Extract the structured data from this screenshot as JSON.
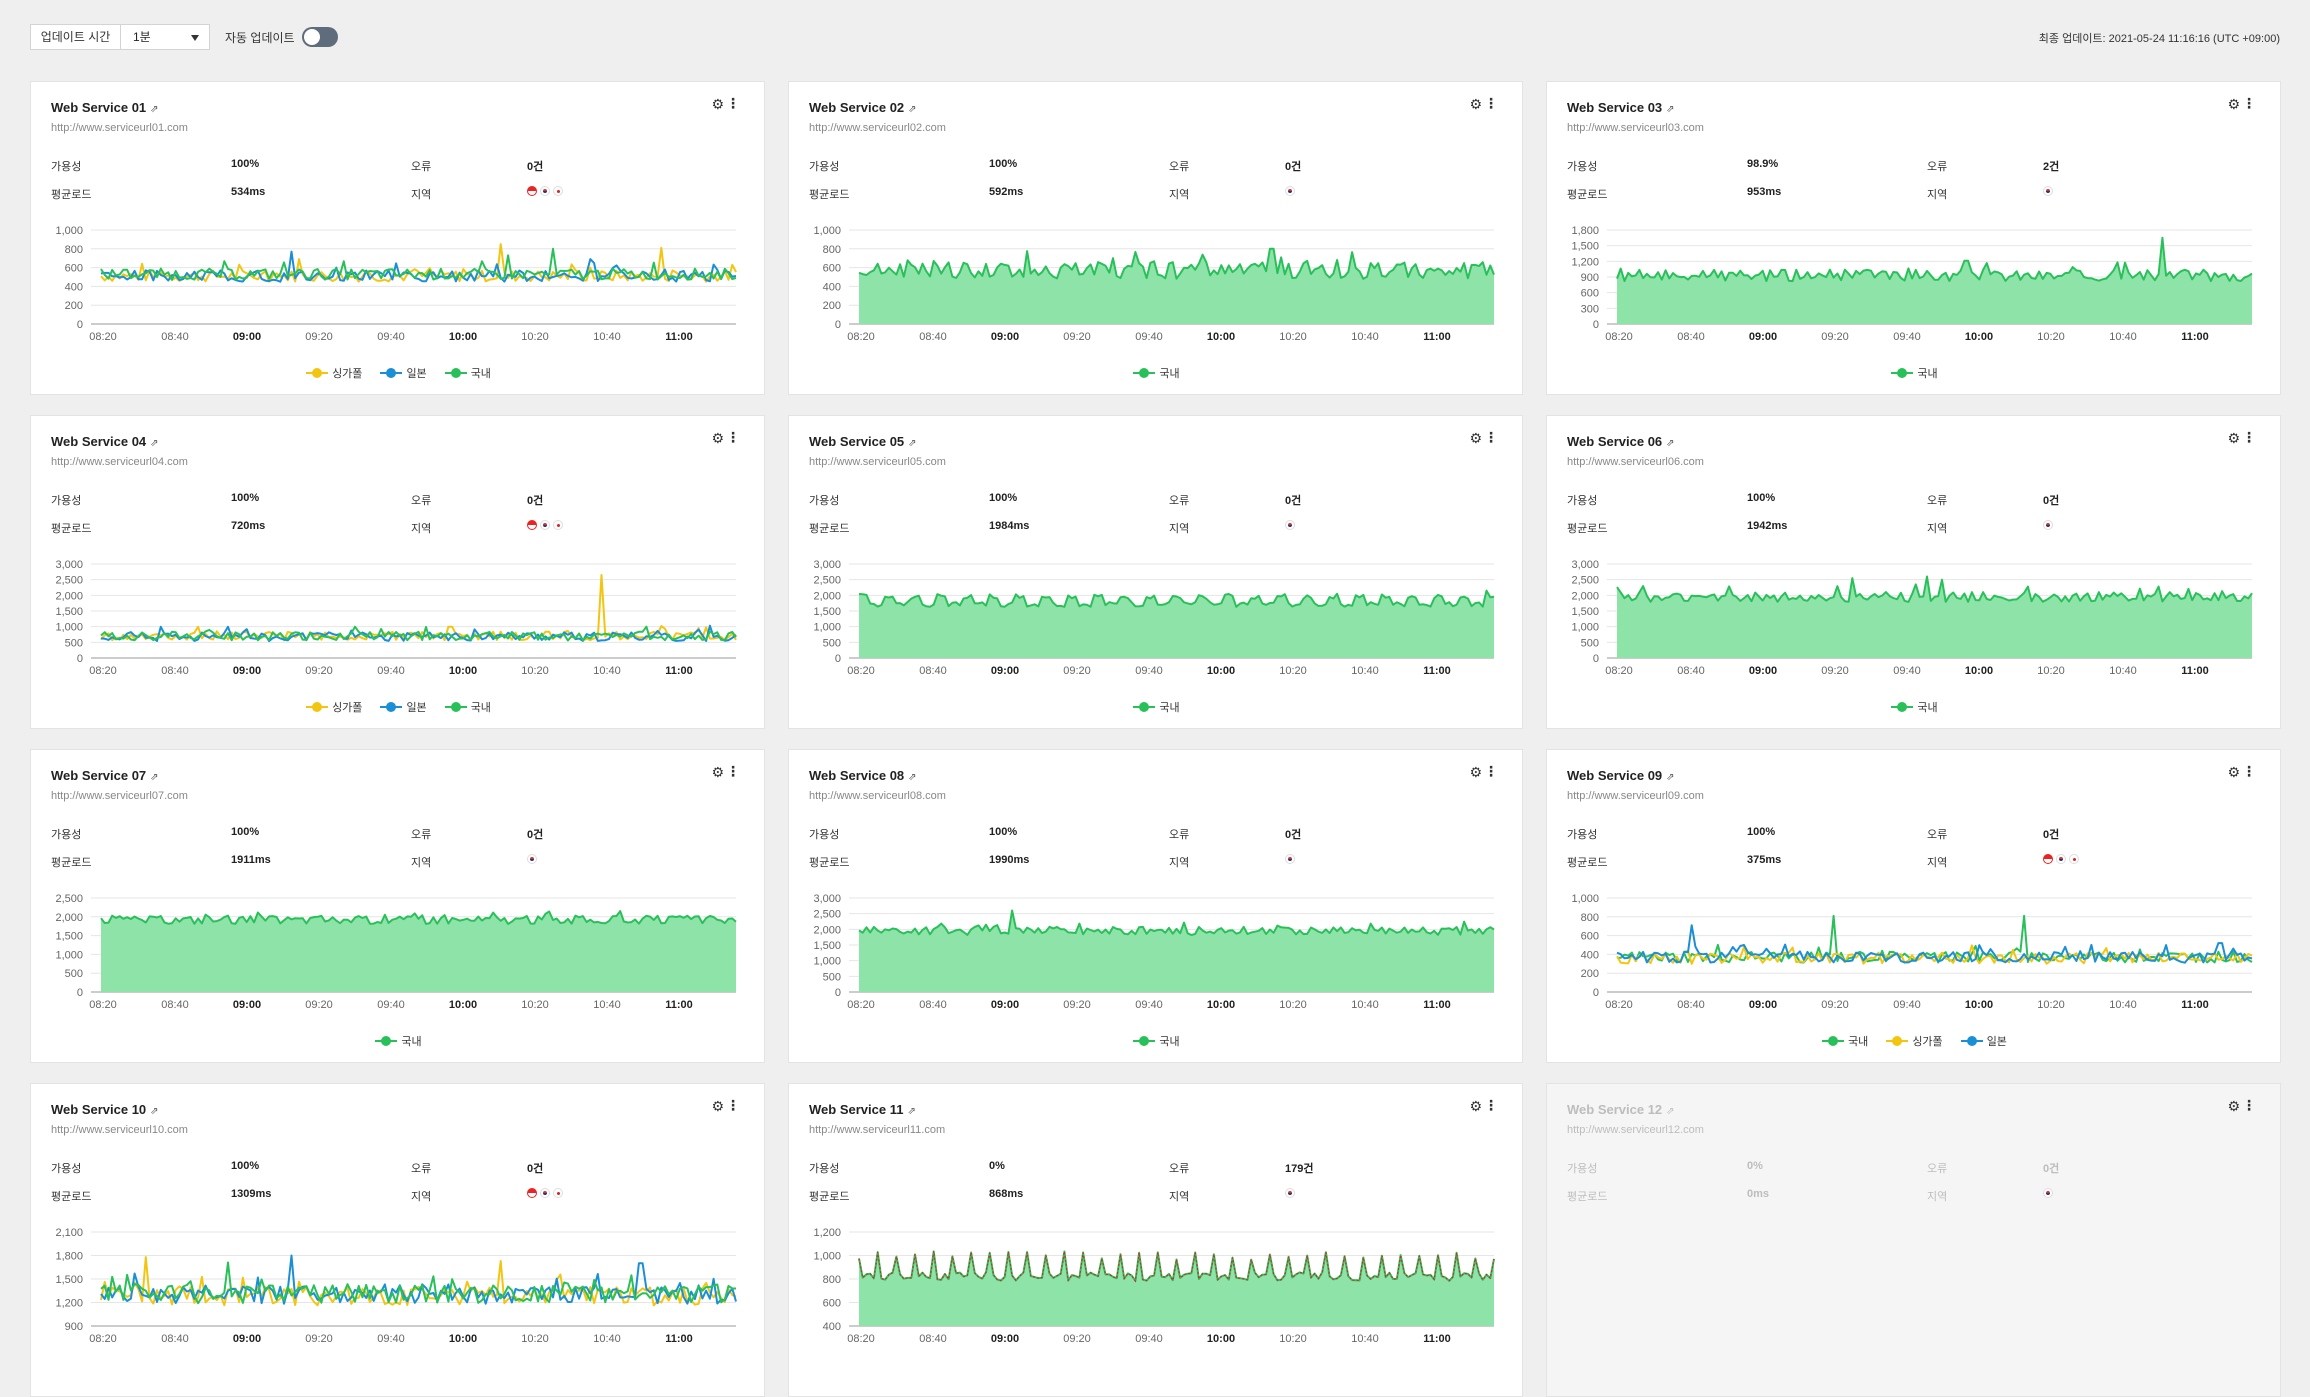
{
  "toolbar": {
    "update_time_label": "업데이트 시간",
    "interval_value": "1분",
    "auto_update_label": "자동 업데이트",
    "auto_update_on": false,
    "last_update": "최종 업데이트: 2021-05-24 11:16:16 (UTC +09:00)"
  },
  "labels": {
    "availability": "가용성",
    "error": "오류",
    "avg_load": "평균로드",
    "region": "지역"
  },
  "legend_names": {
    "sg": "싱가폴",
    "jp": "일본",
    "kr": "국내"
  },
  "colors": {
    "sg": "#f2c511",
    "jp": "#1a8fd6",
    "kr": "#29c05a",
    "kr_fill": "#8de3a8",
    "error_line": "#d8262b"
  },
  "x_ticks": [
    "08:20",
    "08:40",
    "09:00",
    "09:20",
    "09:40",
    "10:00",
    "10:20",
    "10:40",
    "11:00"
  ],
  "x_ticks_bold": [
    "09:00",
    "10:00",
    "11:00"
  ],
  "services": [
    {
      "title": "Web Service 01",
      "url": "http://www.serviceurl01.com",
      "availability": "100%",
      "errors": "0건",
      "avg_load": "534ms",
      "regions": [
        "sg",
        "kr",
        "jp"
      ],
      "chart": {
        "type": "line",
        "ymax": 1000,
        "yticks": [
          "0",
          "200",
          "400",
          "600",
          "800",
          "1,000"
        ],
        "legend": [
          "sg",
          "jp",
          "kr"
        ],
        "series": [
          {
            "key": "sg",
            "base": 510,
            "amp": 60,
            "spikes": [
              [
                0.63,
                340
              ],
              [
                0.88,
                300
              ],
              [
                0.31,
                180
              ]
            ]
          },
          {
            "key": "jp",
            "base": 510,
            "amp": 60,
            "spikes": [
              [
                0.3,
                260
              ],
              [
                0.77,
                180
              ]
            ]
          },
          {
            "key": "kr",
            "base": 530,
            "amp": 60,
            "spikes": [
              [
                0.71,
                270
              ],
              [
                0.64,
                200
              ]
            ]
          }
        ]
      }
    },
    {
      "title": "Web Service 02",
      "url": "http://www.serviceurl02.com",
      "availability": "100%",
      "errors": "0건",
      "avg_load": "592ms",
      "regions": [
        "kr"
      ],
      "chart": {
        "type": "area",
        "ymax": 1000,
        "yticks": [
          "0",
          "200",
          "400",
          "600",
          "800",
          "1,000"
        ],
        "legend": [
          "kr"
        ],
        "series": [
          {
            "key": "kr",
            "base": 570,
            "amp": 90,
            "spikes": [
              [
                0.65,
                230
              ],
              [
                0.4,
                130
              ]
            ]
          }
        ]
      }
    },
    {
      "title": "Web Service 03",
      "url": "http://www.serviceurl03.com",
      "availability": "98.9%",
      "errors": "2건",
      "avg_load": "953ms",
      "regions": [
        "kr"
      ],
      "chart": {
        "type": "area",
        "ymax": 1800,
        "yticks": [
          "0",
          "300",
          "600",
          "900",
          "1,200",
          "1,500",
          "1,800"
        ],
        "legend": [
          "kr"
        ],
        "series": [
          {
            "key": "kr",
            "base": 930,
            "amp": 110,
            "spikes": [
              [
                0.86,
                720
              ],
              [
                0.55,
                280
              ]
            ]
          }
        ]
      }
    },
    {
      "title": "Web Service 04",
      "url": "http://www.serviceurl04.com",
      "availability": "100%",
      "errors": "0건",
      "avg_load": "720ms",
      "regions": [
        "sg",
        "kr",
        "jp"
      ],
      "chart": {
        "type": "line",
        "ymax": 3000,
        "yticks": [
          "0",
          "500",
          "1,000",
          "1,500",
          "2,000",
          "2,500",
          "3,000"
        ],
        "legend": [
          "sg",
          "jp",
          "kr"
        ],
        "series": [
          {
            "key": "sg",
            "base": 700,
            "amp": 140,
            "spikes": [
              [
                0.79,
                1950
              ],
              [
                0.55,
                300
              ]
            ]
          },
          {
            "key": "jp",
            "base": 680,
            "amp": 140,
            "spikes": [
              [
                0.96,
                350
              ]
            ]
          },
          {
            "key": "kr",
            "base": 700,
            "amp": 140,
            "spikes": [
              [
                0.4,
                300
              ]
            ]
          }
        ]
      }
    },
    {
      "title": "Web Service 05",
      "url": "http://www.serviceurl05.com",
      "availability": "100%",
      "errors": "0건",
      "avg_load": "1984ms",
      "regions": [
        "kr"
      ],
      "chart": {
        "type": "area-periodic",
        "ymax": 3000,
        "yticks": [
          "0",
          "500",
          "1,000",
          "1,500",
          "2,000",
          "2,500",
          "3,000"
        ],
        "legend": [
          "kr"
        ],
        "series": [
          {
            "key": "kr",
            "base": 1850,
            "amp": 400,
            "spikes": [
              [
                0.99,
                300
              ]
            ]
          }
        ]
      }
    },
    {
      "title": "Web Service 06",
      "url": "http://www.serviceurl06.com",
      "availability": "100%",
      "errors": "0건",
      "avg_load": "1942ms",
      "regions": [
        "kr"
      ],
      "chart": {
        "type": "area",
        "ymax": 3000,
        "yticks": [
          "0",
          "500",
          "1,000",
          "1,500",
          "2,000",
          "2,500",
          "3,000"
        ],
        "legend": [
          "kr"
        ],
        "series": [
          {
            "key": "kr",
            "base": 1950,
            "amp": 160,
            "spikes": [
              [
                0.37,
                600
              ],
              [
                0.49,
                650
              ],
              [
                0.51,
                550
              ],
              [
                0.47,
                400
              ]
            ]
          }
        ]
      }
    },
    {
      "title": "Web Service 07",
      "url": "http://www.serviceurl07.com",
      "availability": "100%",
      "errors": "0건",
      "avg_load": "1911ms",
      "regions": [
        "kr"
      ],
      "chart": {
        "type": "area",
        "ymax": 2500,
        "yticks": [
          "0",
          "500",
          "1,000",
          "1,500",
          "2,000",
          "2,500"
        ],
        "legend": [
          "kr"
        ],
        "series": [
          {
            "key": "kr",
            "base": 1920,
            "amp": 110,
            "spikes": []
          }
        ]
      }
    },
    {
      "title": "Web Service 08",
      "url": "http://www.serviceurl08.com",
      "availability": "100%",
      "errors": "0건",
      "avg_load": "1990ms",
      "regions": [
        "kr"
      ],
      "chart": {
        "type": "area",
        "ymax": 3000,
        "yticks": [
          "0",
          "500",
          "1,000",
          "1,500",
          "2,000",
          "2,500",
          "3,000"
        ],
        "legend": [
          "kr"
        ],
        "series": [
          {
            "key": "kr",
            "base": 1950,
            "amp": 130,
            "spikes": [
              [
                0.24,
                650
              ]
            ]
          }
        ]
      }
    },
    {
      "title": "Web Service 09",
      "url": "http://www.serviceurl09.com",
      "availability": "100%",
      "errors": "0건",
      "avg_load": "375ms",
      "regions": [
        "sg",
        "kr",
        "jp"
      ],
      "chart": {
        "type": "line",
        "ymax": 1000,
        "yticks": [
          "0",
          "200",
          "400",
          "600",
          "800",
          "1,000"
        ],
        "legend": [
          "kr",
          "sg",
          "jp"
        ],
        "series": [
          {
            "key": "kr",
            "base": 370,
            "amp": 60,
            "spikes": [
              [
                0.34,
                440
              ],
              [
                0.64,
                440
              ]
            ]
          },
          {
            "key": "sg",
            "base": 360,
            "amp": 60,
            "spikes": [
              [
                0.2,
                120
              ]
            ]
          },
          {
            "key": "jp",
            "base": 370,
            "amp": 60,
            "spikes": [
              [
                0.12,
                340
              ],
              [
                0.95,
                150
              ]
            ]
          }
        ]
      }
    },
    {
      "title": "Web Service 10",
      "url": "http://www.serviceurl10.com",
      "availability": "100%",
      "errors": "0건",
      "avg_load": "1309ms",
      "regions": [
        "sg",
        "kr",
        "jp"
      ],
      "chart": {
        "type": "line",
        "ymax": 2100,
        "yticks": [
          "900",
          "1,200",
          "1,500",
          "1,800",
          "2,100"
        ],
        "ymin": 900,
        "legend": [],
        "series": [
          {
            "key": "sg",
            "base": 1280,
            "amp": 120,
            "spikes": [
              [
                0.07,
                500
              ],
              [
                0.63,
                450
              ]
            ]
          },
          {
            "key": "jp",
            "base": 1300,
            "amp": 120,
            "spikes": [
              [
                0.3,
                500
              ],
              [
                0.85,
                400
              ]
            ]
          },
          {
            "key": "kr",
            "base": 1310,
            "amp": 120,
            "spikes": [
              [
                0.2,
                400
              ]
            ]
          }
        ]
      }
    },
    {
      "title": "Web Service 11",
      "url": "http://www.serviceurl11.com",
      "availability": "0%",
      "errors": "179건",
      "avg_load": "868ms",
      "regions": [
        "kr"
      ],
      "chart": {
        "type": "area-error",
        "ymax": 1200,
        "ymin": 400,
        "yticks": [
          "400",
          "600",
          "800",
          "1,000",
          "1,200"
        ],
        "legend": [],
        "series": [
          {
            "key": "kr",
            "base": 850,
            "amp": 150,
            "spikes": []
          }
        ]
      }
    },
    {
      "title": "Web Service 12",
      "url": "http://www.serviceurl12.com",
      "availability": "0%",
      "errors": "0건",
      "avg_load": "0ms",
      "regions": [
        "kr"
      ],
      "disabled": true,
      "chart": null
    }
  ]
}
